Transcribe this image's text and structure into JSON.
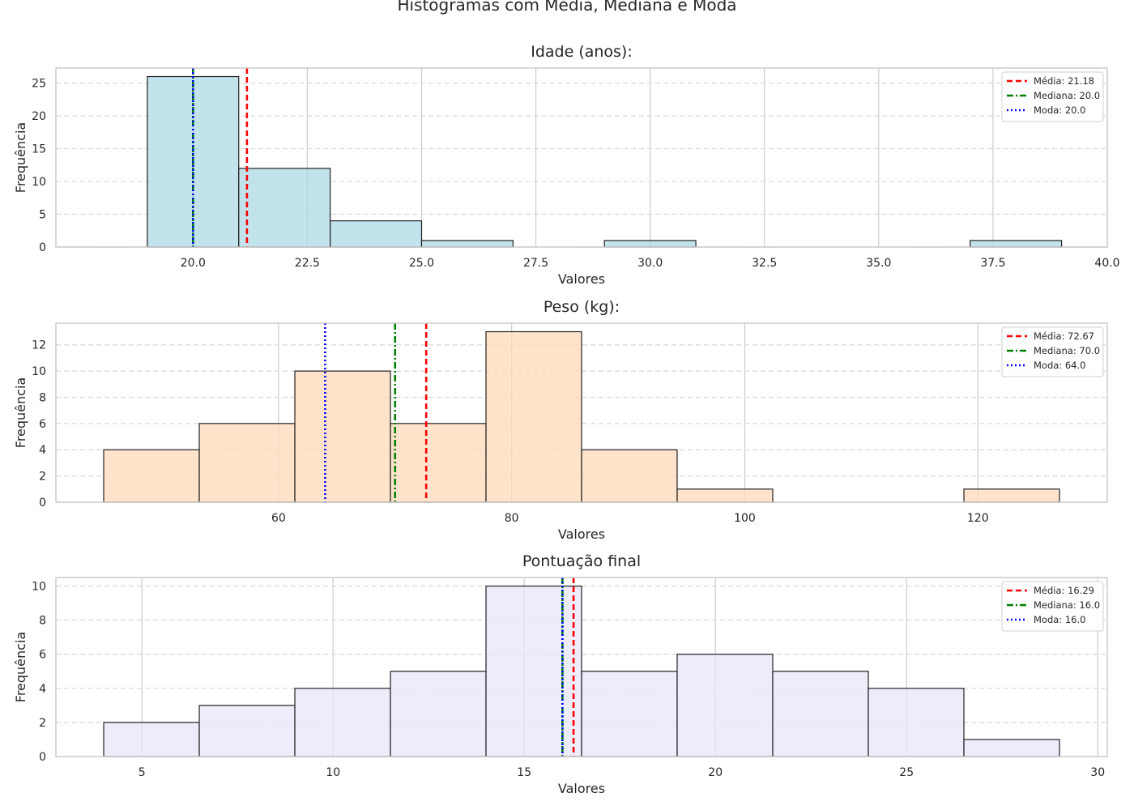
{
  "figure": {
    "title": "Histogramas com Média, Mediana e Moda"
  },
  "chart_data": [
    {
      "type": "bar",
      "title": "Idade (anos):",
      "xlabel": "Valores",
      "ylabel": "Frequência",
      "xlim": [
        17,
        40
      ],
      "ylim": [
        0,
        27.3
      ],
      "xticks": [
        20.0,
        22.5,
        25.0,
        27.5,
        30.0,
        32.5,
        35.0,
        37.5,
        40.0
      ],
      "xtick_labels": [
        "20.0",
        "22.5",
        "25.0",
        "27.5",
        "30.0",
        "32.5",
        "35.0",
        "37.5",
        "40.0"
      ],
      "yticks": [
        0,
        5,
        10,
        15,
        20,
        25
      ],
      "ytick_labels": [
        "0",
        "5",
        "10",
        "15",
        "20",
        "25"
      ],
      "bins": [
        19,
        21,
        23,
        25,
        27,
        29,
        31,
        33,
        35,
        37,
        39
      ],
      "counts": [
        26,
        12,
        4,
        1,
        0,
        1,
        0,
        0,
        0,
        1
      ],
      "bar_color": "#add8e6",
      "grid": true,
      "legend_position": "top-right",
      "lines": [
        {
          "label": "Média: 21.18",
          "value": 21.18,
          "color": "#ff0000",
          "style": "dashed"
        },
        {
          "label": "Mediana: 20.0",
          "value": 20.0,
          "color": "#008000",
          "style": "dashdot"
        },
        {
          "label": "Moda: 20.0",
          "value": 20.0,
          "color": "#0000ff",
          "style": "dotted"
        }
      ]
    },
    {
      "type": "bar",
      "title": "Peso (kg):",
      "xlabel": "Valores",
      "ylabel": "Frequência",
      "xlim": [
        40.9,
        131.1
      ],
      "ylim": [
        0,
        13.65
      ],
      "xticks": [
        60,
        80,
        100,
        120
      ],
      "xtick_labels": [
        "60",
        "80",
        "100",
        "120"
      ],
      "yticks": [
        0,
        2,
        4,
        6,
        8,
        10,
        12
      ],
      "ytick_labels": [
        "0",
        "2",
        "4",
        "6",
        "8",
        "10",
        "12"
      ],
      "bins": [
        45,
        53.2,
        61.4,
        69.6,
        77.8,
        86,
        94.2,
        102.4,
        110.6,
        118.8,
        127
      ],
      "counts": [
        4,
        6,
        10,
        6,
        13,
        4,
        1,
        0,
        0,
        1
      ],
      "bar_color": "#ffdab9",
      "grid": true,
      "legend_position": "top-right",
      "lines": [
        {
          "label": "Média: 72.67",
          "value": 72.67,
          "color": "#ff0000",
          "style": "dashed"
        },
        {
          "label": "Mediana: 70.0",
          "value": 70.0,
          "color": "#008000",
          "style": "dashdot"
        },
        {
          "label": "Moda: 64.0",
          "value": 64.0,
          "color": "#0000ff",
          "style": "dotted"
        }
      ]
    },
    {
      "type": "bar",
      "title": "Pontuação final",
      "xlabel": "Valores",
      "ylabel": "Frequência",
      "xlim": [
        2.75,
        30.25
      ],
      "ylim": [
        0,
        10.5
      ],
      "xticks": [
        5,
        10,
        15,
        20,
        25,
        30
      ],
      "xtick_labels": [
        "5",
        "10",
        "15",
        "20",
        "25",
        "30"
      ],
      "yticks": [
        0,
        2,
        4,
        6,
        8,
        10
      ],
      "ytick_labels": [
        "0",
        "2",
        "4",
        "6",
        "8",
        "10"
      ],
      "bins": [
        4,
        6.5,
        9,
        11.5,
        14,
        16.5,
        19,
        21.5,
        24,
        26.5,
        29
      ],
      "counts": [
        2,
        3,
        4,
        5,
        10,
        5,
        6,
        5,
        4,
        1
      ],
      "bar_color": "#e6e6fa",
      "grid": true,
      "legend_position": "top-right",
      "lines": [
        {
          "label": "Média: 16.29",
          "value": 16.29,
          "color": "#ff0000",
          "style": "dashed"
        },
        {
          "label": "Mediana: 16.0",
          "value": 16.0,
          "color": "#008000",
          "style": "dashdot"
        },
        {
          "label": "Moda: 16.0",
          "value": 16.0,
          "color": "#0000ff",
          "style": "dotted"
        }
      ]
    }
  ]
}
